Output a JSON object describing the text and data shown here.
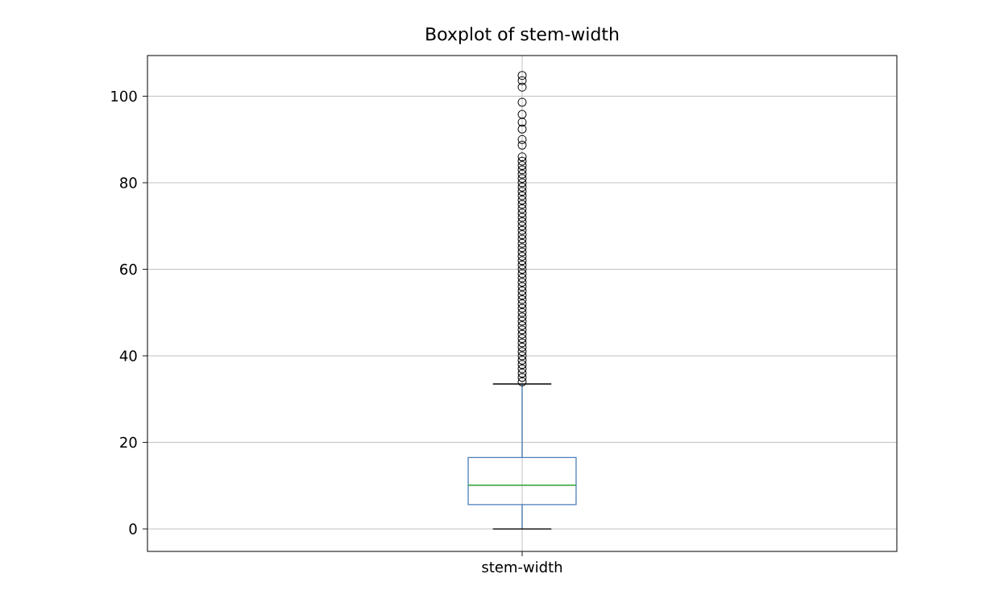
{
  "chart_data": {
    "type": "box",
    "title": "Boxplot of stem-width",
    "categories": [
      "stem-width"
    ],
    "boxes": [
      {
        "low": 0,
        "q1": 5.6,
        "median": 10.1,
        "q3": 16.5,
        "high": 33.5,
        "outliers": [
          34,
          35,
          36,
          37,
          38,
          39,
          40,
          41,
          42,
          43,
          44,
          45,
          46,
          47,
          48,
          49,
          50,
          51,
          52,
          53,
          54,
          55,
          56,
          57,
          58,
          59,
          60,
          61,
          62,
          63,
          64,
          65,
          66,
          67,
          68,
          69,
          70,
          71,
          72,
          73,
          74,
          75,
          76,
          77,
          78,
          79,
          80,
          81,
          82,
          83,
          84,
          85,
          86,
          88.7,
          90,
          92.4,
          94,
          95.8,
          98.6,
          102.1,
          103.6,
          104.8
        ]
      }
    ],
    "color": "#4a7ebb",
    "ylim": [
      -5.2,
      109.4
    ],
    "yticks": [
      0,
      20,
      40,
      60,
      80,
      100
    ],
    "grid": true
  }
}
